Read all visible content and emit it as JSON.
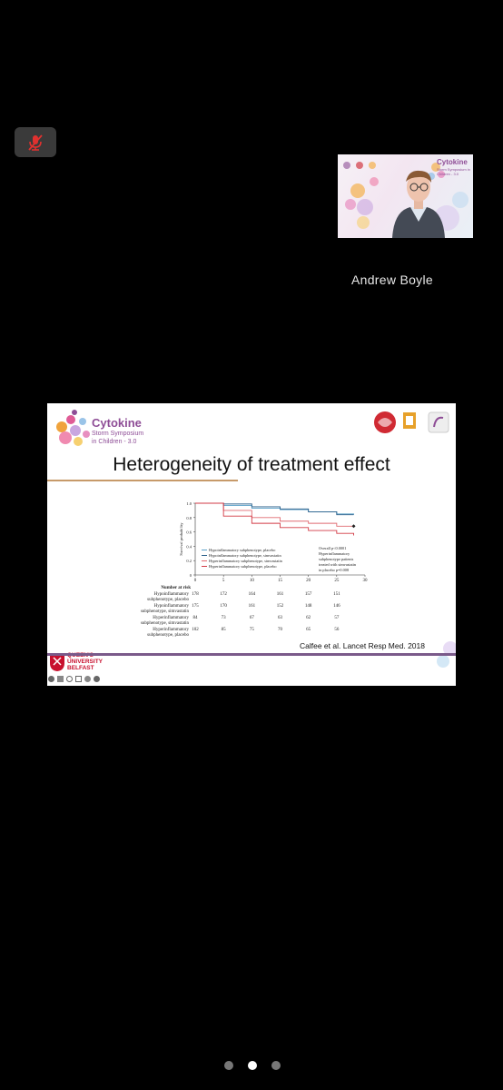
{
  "meeting": {
    "speaker_name": "Andrew Boyle"
  },
  "slide": {
    "logo_title": "Cytokine",
    "logo_subtitle_1": "Storm Symposium",
    "logo_subtitle_2": "in Children - 3.0",
    "title": "Heterogeneity of treatment effect",
    "citation": "Calfee et al. Lancet Resp Med. 2018",
    "university_line1": "QUEEN'S",
    "university_line2": "UNIVERSITY",
    "university_line3": "BELFAST",
    "thumb_logo_title": "Cytokine",
    "thumb_logo_sub": "Storm Symposium in Children - 3.0"
  },
  "chart_data": {
    "type": "line",
    "ylabel": "Survival probability",
    "x_ticks": [
      0,
      5,
      10,
      15,
      20,
      25,
      30
    ],
    "y_ticks": [
      "0",
      "0.2",
      "0.4",
      "0.6",
      "0.8",
      "1.0"
    ],
    "xlim": [
      0,
      30
    ],
    "ylim": [
      0,
      1.0
    ],
    "annotation": [
      "Overall p<0.0001",
      "Hyperinflammatory",
      "subphenotype patients",
      "treated with simvastatin",
      "in placebo p=0.008"
    ],
    "series": [
      {
        "name": "Hypoinflammatory subphenotype, placebo",
        "color": "#5aa0c8",
        "x": [
          0,
          5,
          10,
          15,
          20,
          25,
          28
        ],
        "y": [
          1.0,
          0.97,
          0.93,
          0.91,
          0.88,
          0.85,
          0.84
        ]
      },
      {
        "name": "Hypoinflammatory subphenotype, simvastatin",
        "color": "#2a5f8a",
        "x": [
          0,
          5,
          10,
          15,
          20,
          25,
          28
        ],
        "y": [
          1.0,
          0.99,
          0.95,
          0.92,
          0.88,
          0.84,
          0.84
        ]
      },
      {
        "name": "Hyperinflammatory subphenotype, simvastatin",
        "color": "#e06a70",
        "x": [
          0,
          5,
          10,
          15,
          20,
          25,
          28
        ],
        "y": [
          1.0,
          0.9,
          0.8,
          0.75,
          0.72,
          0.68,
          0.68
        ]
      },
      {
        "name": "Hyperinflammatory subphenotype, placebo",
        "color": "#d23a45",
        "x": [
          0,
          5,
          10,
          15,
          20,
          25,
          28
        ],
        "y": [
          1.0,
          0.82,
          0.72,
          0.66,
          0.62,
          0.58,
          0.55
        ]
      }
    ],
    "number_at_risk": {
      "header": "Number at risk",
      "rows": [
        {
          "label": [
            "Hypoinflammatory",
            "subphenotype, placebo"
          ],
          "values": [
            "178",
            "172",
            "164",
            "161",
            "157",
            "151"
          ]
        },
        {
          "label": [
            "Hypoinflammatory",
            "subphenotype, simvastatin"
          ],
          "values": [
            "175",
            "170",
            "161",
            "152",
            "148",
            "146"
          ]
        },
        {
          "label": [
            "Hyperinflammatory",
            "subphenotype, simvastatin"
          ],
          "values": [
            "84",
            "73",
            "67",
            "63",
            "62",
            "57"
          ]
        },
        {
          "label": [
            "Hyperinflammatory",
            "subphenotype, placebo"
          ],
          "values": [
            "102",
            "85",
            "75",
            "70",
            "65",
            "56"
          ]
        }
      ]
    }
  },
  "pager": {
    "count": 3,
    "active": 1
  }
}
